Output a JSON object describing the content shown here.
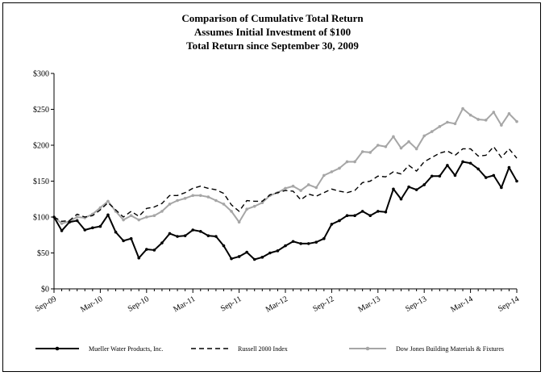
{
  "chart_data": {
    "type": "line",
    "title_lines": [
      "Comparison of Cumulative Total Return",
      "Assumes Initial Investment of $100",
      "Total Return since September 30, 2009"
    ],
    "xlabel": "",
    "ylabel": "",
    "ylim": [
      0,
      300
    ],
    "yticks": [
      0,
      50,
      100,
      150,
      200,
      250,
      300
    ],
    "ytick_labels": [
      "$0",
      "$50",
      "$100",
      "$150",
      "$200",
      "$250",
      "$300"
    ],
    "xticks": [
      0,
      6,
      12,
      18,
      24,
      30,
      36,
      42,
      48,
      54,
      60
    ],
    "xtick_labels": [
      "Sep-09",
      "Mar-10",
      "Sep-10",
      "Mar-11",
      "Sep-11",
      "Mar-12",
      "Sep-12",
      "Mar-13",
      "Sep-13",
      "Mar-14",
      "Sep-14"
    ],
    "grid": false,
    "legend_position": "bottom",
    "series": [
      {
        "name": "Mueller Water Products, Inc.",
        "style": "solid-markers",
        "color": "#000000",
        "values": [
          100,
          81,
          93,
          95,
          82,
          85,
          87,
          103,
          79,
          67,
          70,
          43,
          55,
          54,
          64,
          77,
          73,
          74,
          82,
          80,
          74,
          73,
          60,
          42,
          45,
          51,
          41,
          44,
          50,
          53,
          60,
          66,
          63,
          63,
          65,
          70,
          90,
          95,
          102,
          102,
          108,
          102,
          108,
          107,
          139,
          125,
          142,
          138,
          145,
          157,
          157,
          172,
          158,
          177,
          175,
          167,
          155,
          158,
          141,
          169,
          150
        ]
      },
      {
        "name": "Russell 2000 Index",
        "style": "dashed",
        "color": "#000000",
        "values": [
          100,
          94,
          95,
          104,
          100,
          102,
          110,
          120,
          110,
          100,
          108,
          101,
          112,
          114,
          119,
          130,
          130,
          134,
          140,
          143,
          140,
          138,
          133,
          117,
          108,
          123,
          122,
          122,
          131,
          134,
          137,
          136,
          124,
          132,
          129,
          134,
          139,
          136,
          134,
          137,
          148,
          150,
          157,
          156,
          163,
          160,
          172,
          164,
          177,
          183,
          189,
          192,
          186,
          195,
          195,
          185,
          186,
          198,
          183,
          195,
          182
        ]
      },
      {
        "name": "Dow Jones Building Materials & Fixtures",
        "style": "solid-markers",
        "color": "#a6a6a6",
        "values": [
          100,
          91,
          94,
          100,
          99,
          104,
          113,
          122,
          108,
          96,
          102,
          96,
          100,
          102,
          108,
          118,
          123,
          126,
          130,
          130,
          128,
          123,
          118,
          108,
          93,
          111,
          115,
          120,
          130,
          134,
          140,
          143,
          137,
          145,
          141,
          158,
          163,
          168,
          177,
          177,
          191,
          190,
          200,
          198,
          212,
          196,
          205,
          195,
          213,
          219,
          226,
          232,
          230,
          251,
          242,
          236,
          235,
          246,
          228,
          244,
          233
        ]
      }
    ]
  }
}
